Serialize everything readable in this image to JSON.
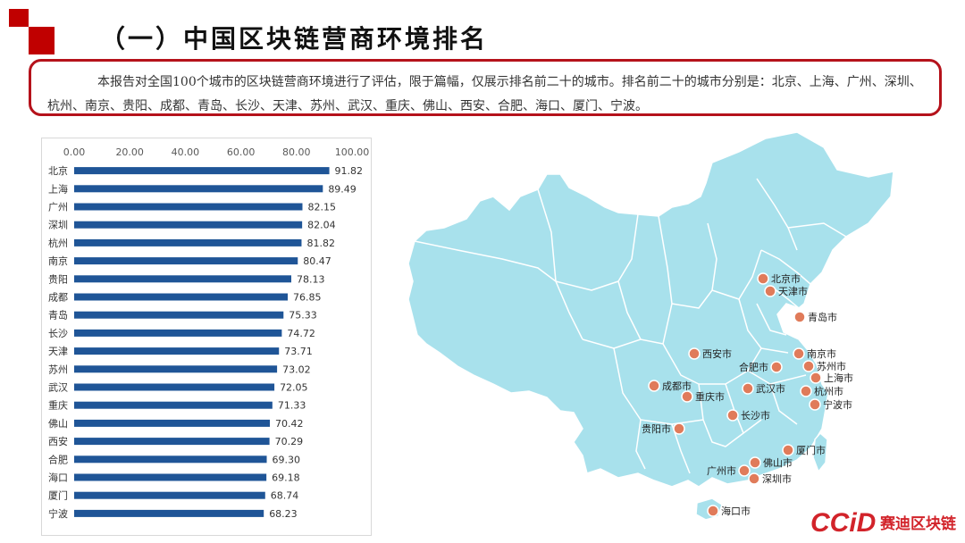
{
  "heading": {
    "title": "（一）中国区块链营商环境排名"
  },
  "summary": {
    "text": "本报告对全国100个城市的区块链营商环境进行了评估，限于篇幅，仅展示排名前二十的城市。排名前二十的城市分别是：北京、上海、广州、深圳、杭州、南京、贵阳、成都、青岛、长沙、天津、苏州、武汉、重庆、佛山、西安、合肥、海口、厦门、宁波。"
  },
  "chart_data": {
    "type": "bar",
    "orientation": "horizontal",
    "categories": [
      "北京",
      "上海",
      "广州",
      "深圳",
      "杭州",
      "南京",
      "贵阳",
      "成都",
      "青岛",
      "长沙",
      "天津",
      "苏州",
      "武汉",
      "重庆",
      "佛山",
      "西安",
      "合肥",
      "海口",
      "厦门",
      "宁波"
    ],
    "values": [
      91.82,
      89.49,
      82.15,
      82.04,
      81.82,
      80.47,
      78.13,
      76.85,
      75.33,
      74.72,
      73.71,
      73.02,
      72.05,
      71.33,
      70.42,
      70.29,
      69.3,
      69.18,
      68.74,
      68.23
    ],
    "value_labels": [
      "91.82",
      "89.49",
      "82.15",
      "82.04",
      "81.82",
      "80.47",
      "78.13",
      "76.85",
      "75.33",
      "74.72",
      "73.71",
      "73.02",
      "72.05",
      "71.33",
      "70.42",
      "70.29",
      "69.30",
      "69.18",
      "68.74",
      "68.23"
    ],
    "xlim": [
      0,
      100
    ],
    "ticks": [
      "0.00",
      "20.00",
      "40.00",
      "60.00",
      "80.00",
      "100.00"
    ],
    "tick_values": [
      0,
      20,
      40,
      60,
      80,
      100
    ],
    "axis_position": "top",
    "grid": false,
    "bar_color": "#1f5597"
  },
  "map": {
    "land_color": "#a8e1ec",
    "marker_color": "#e07b5a",
    "cities": [
      {
        "label": "北京市"
      },
      {
        "label": "天津市"
      },
      {
        "label": "青岛市"
      },
      {
        "label": "西安市"
      },
      {
        "label": "南京市"
      },
      {
        "label": "合肥市"
      },
      {
        "label": "苏州市"
      },
      {
        "label": "上海市"
      },
      {
        "label": "成都市"
      },
      {
        "label": "武汉市"
      },
      {
        "label": "杭州市"
      },
      {
        "label": "重庆市"
      },
      {
        "label": "宁波市"
      },
      {
        "label": "长沙市"
      },
      {
        "label": "贵阳市"
      },
      {
        "label": "厦门市"
      },
      {
        "label": "佛山市"
      },
      {
        "label": "广州市"
      },
      {
        "label": "深圳市"
      },
      {
        "label": "海口市"
      }
    ]
  },
  "logo": {
    "mark": "CCiD",
    "text": "赛迪区块链",
    "color": "#d2232a"
  }
}
